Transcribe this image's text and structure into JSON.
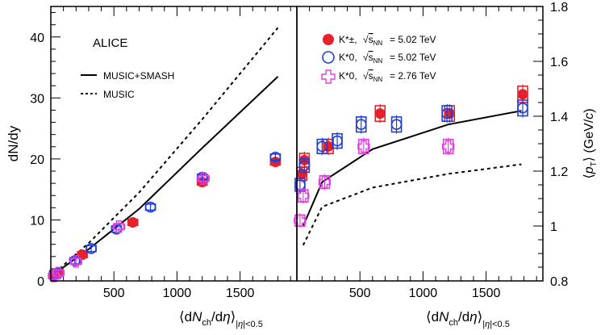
{
  "chart_data": [
    {
      "type": "scatter",
      "panel": "left",
      "title": "",
      "annotation": "ALICE",
      "xlabel": "⟨dN_ch/dη⟩_|η|<0.5",
      "ylabel": "dN/dy",
      "xlim": [
        0,
        1950
      ],
      "ylim": [
        0,
        45
      ],
      "yticks": [
        "0",
        "10",
        "20",
        "30",
        "40"
      ],
      "xticks": [
        "500",
        "1000",
        "1500"
      ],
      "legend": {
        "placement": "top-left",
        "entries": [
          "MUSIC+SMASH",
          "MUSIC"
        ]
      },
      "series": [
        {
          "name": "MUSIC+SMASH",
          "kind": "line",
          "style": "solid",
          "x": [
            30,
            300,
            700,
            1200,
            1800
          ],
          "y": [
            1.2,
            5.2,
            11.8,
            21.8,
            33.5
          ]
        },
        {
          "name": "MUSIC",
          "kind": "line",
          "style": "dashed",
          "x": [
            30,
            300,
            700,
            1200,
            1800
          ],
          "y": [
            1.3,
            6.2,
            14.5,
            26.5,
            41.5
          ]
        },
        {
          "name": "K*± √sNN = 5.02 TeV",
          "kind": "points",
          "marker": "filled-circle",
          "color": "#e8202a",
          "x": [
            30,
            60,
            250,
            650,
            1200,
            1780
          ],
          "y": [
            1.2,
            1.4,
            4.3,
            9.6,
            16.2,
            19.5
          ]
        },
        {
          "name": "K*0 √sNN = 5.02 TeV",
          "kind": "points",
          "marker": "open-circle",
          "color": "#1f3fd8",
          "x": [
            25,
            60,
            190,
            320,
            520,
            790,
            1200,
            1780
          ],
          "y": [
            0.9,
            1.3,
            3.3,
            5.3,
            8.5,
            12.1,
            17.0,
            20.3
          ]
        },
        {
          "name": "K*0 √sNN = 2.76 TeV",
          "kind": "points",
          "marker": "open-cross",
          "color": "#e040e0",
          "x": [
            25,
            60,
            200,
            540,
            1210
          ],
          "y": [
            0.8,
            1.3,
            3.2,
            8.9,
            16.8
          ]
        }
      ]
    },
    {
      "type": "scatter",
      "panel": "right",
      "title": "",
      "xlabel": "⟨dN_ch/dη⟩_|η|<0.5",
      "ylabel": "⟨p_T⟩ (GeV/c)",
      "xlim": [
        0,
        1950
      ],
      "ylim": [
        0.8,
        1.8
      ],
      "yticks": [
        "0.8",
        "1",
        "1.2",
        "1.4",
        "1.6",
        "1.8"
      ],
      "xticks": [
        "500",
        "1000",
        "1500"
      ],
      "legend": {
        "placement": "top-left",
        "entries": [
          {
            "particle": "K*±",
            "energy": "= 5.02 TeV"
          },
          {
            "particle": "K*0",
            "energy": "= 5.02 TeV"
          },
          {
            "particle": "K*0",
            "energy": "= 2.76 TeV"
          }
        ]
      },
      "series": [
        {
          "name": "MUSIC+SMASH",
          "kind": "line",
          "style": "solid",
          "x": [
            50,
            200,
            600,
            1200,
            1780
          ],
          "y": [
            1.0,
            1.16,
            1.28,
            1.37,
            1.42
          ]
        },
        {
          "name": "MUSIC",
          "kind": "line",
          "style": "dashed",
          "x": [
            50,
            200,
            600,
            1200,
            1780
          ],
          "y": [
            0.93,
            1.07,
            1.14,
            1.19,
            1.225
          ]
        },
        {
          "name": "K*± √sNN = 5.02 TeV",
          "kind": "points",
          "marker": "filled-circle",
          "color": "#e8202a",
          "x": [
            40,
            60,
            250,
            660,
            1210,
            1790
          ],
          "y": [
            1.19,
            1.24,
            1.29,
            1.41,
            1.41,
            1.48
          ]
        },
        {
          "name": "K*0 √sNN = 5.02 TeV",
          "kind": "points",
          "marker": "open-circle",
          "color": "#1f3fd8",
          "x": [
            25,
            60,
            200,
            320,
            510,
            790,
            1190,
            1790
          ],
          "y": [
            1.15,
            1.22,
            1.29,
            1.31,
            1.37,
            1.37,
            1.41,
            1.43
          ]
        },
        {
          "name": "K*0 √sNN = 2.76 TeV",
          "kind": "points",
          "marker": "open-cross",
          "color": "#e040e0",
          "x": [
            25,
            50,
            220,
            530,
            1200
          ],
          "y": [
            1.02,
            1.11,
            1.16,
            1.29,
            1.29
          ]
        }
      ]
    }
  ]
}
